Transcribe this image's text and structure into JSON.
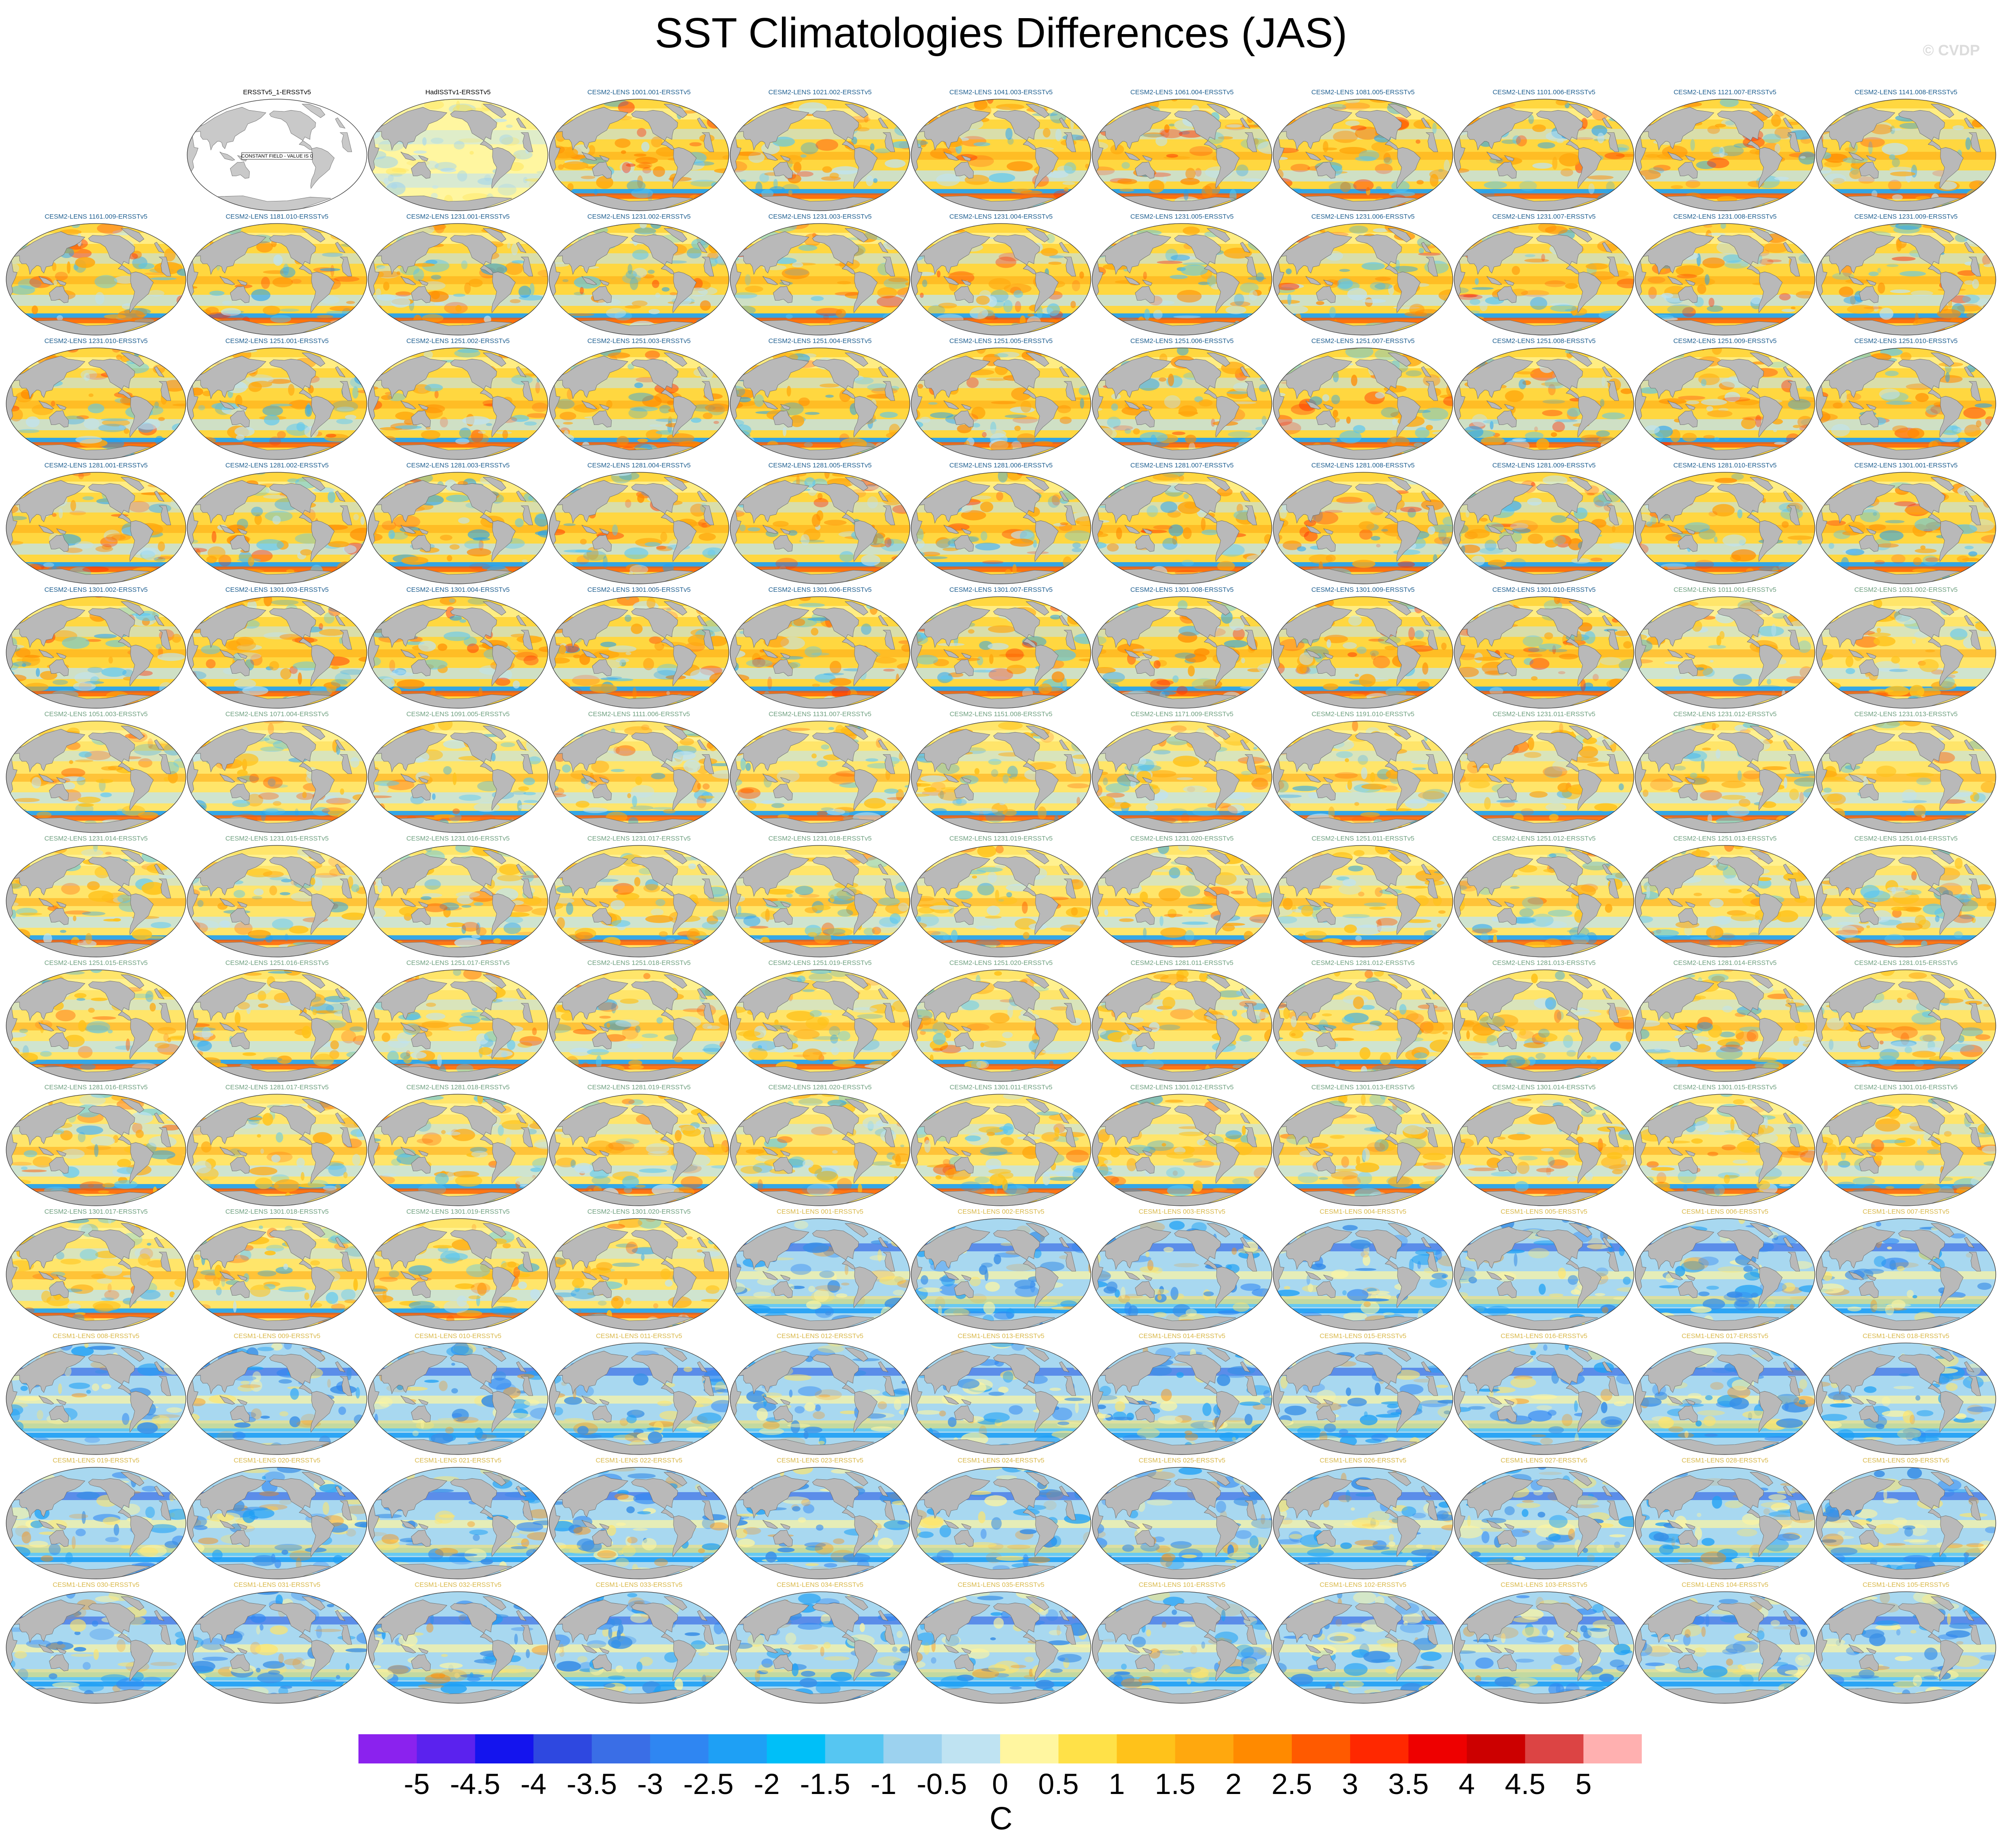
{
  "title": "SST Climatologies Differences (JAS)",
  "credit": "© CVDP",
  "chart_data": {
    "type": "heatmap",
    "title": "SST Climatologies Differences (JAS)",
    "grid": {
      "rows": 13,
      "cols": 11
    },
    "legend_position": "bottom",
    "colorbar": {
      "units": "C",
      "tick_labels": [
        "-5",
        "-4.5",
        "-4",
        "-3.5",
        "-3",
        "-2.5",
        "-2",
        "-1.5",
        "-1",
        "-0.5",
        "0",
        "0.5",
        "1",
        "1.5",
        "2",
        "2.5",
        "3",
        "3.5",
        "4",
        "4.5",
        "5"
      ],
      "colors": [
        "#8b22ee",
        "#5b22ee",
        "#1414ee",
        "#2e48e0",
        "#3a6ee6",
        "#2f86f2",
        "#1ea0f5",
        "#00bff8",
        "#56c6f2",
        "#9cd2ef",
        "#bfe3f2",
        "#fff6a0",
        "#ffe148",
        "#ffc21a",
        "#ffa80e",
        "#ff8a00",
        "#ff5a00",
        "#ff2800",
        "#ee0000",
        "#cc0000",
        "#dc4444",
        "#ffb0b0"
      ]
    },
    "panels": [
      {
        "label": "",
        "group": "blank"
      },
      {
        "label": "ERSSTv5_1-ERSSTv5",
        "group": "obs-constant",
        "note": "CONSTANT FIELD - VALUE IS 0"
      },
      {
        "label": "HadISSTv1-ERSSTv5",
        "group": "obs"
      },
      {
        "label": "CESM2-LENS 1001.001-ERSSTv5",
        "group": "cesm2"
      },
      {
        "label": "CESM2-LENS 1021.002-ERSSTv5",
        "group": "cesm2"
      },
      {
        "label": "CESM2-LENS 1041.003-ERSSTv5",
        "group": "cesm2"
      },
      {
        "label": "CESM2-LENS 1061.004-ERSSTv5",
        "group": "cesm2"
      },
      {
        "label": "CESM2-LENS 1081.005-ERSSTv5",
        "group": "cesm2"
      },
      {
        "label": "CESM2-LENS 1101.006-ERSSTv5",
        "group": "cesm2"
      },
      {
        "label": "CESM2-LENS 1121.007-ERSSTv5",
        "group": "cesm2"
      },
      {
        "label": "CESM2-LENS 1141.008-ERSSTv5",
        "group": "cesm2"
      },
      {
        "label": "CESM2-LENS 1161.009-ERSSTv5",
        "group": "cesm2"
      },
      {
        "label": "CESM2-LENS 1181.010-ERSSTv5",
        "group": "cesm2"
      },
      {
        "label": "CESM2-LENS 1231.001-ERSSTv5",
        "group": "cesm2"
      },
      {
        "label": "CESM2-LENS 1231.002-ERSSTv5",
        "group": "cesm2"
      },
      {
        "label": "CESM2-LENS 1231.003-ERSSTv5",
        "group": "cesm2"
      },
      {
        "label": "CESM2-LENS 1231.004-ERSSTv5",
        "group": "cesm2"
      },
      {
        "label": "CESM2-LENS 1231.005-ERSSTv5",
        "group": "cesm2"
      },
      {
        "label": "CESM2-LENS 1231.006-ERSSTv5",
        "group": "cesm2"
      },
      {
        "label": "CESM2-LENS 1231.007-ERSSTv5",
        "group": "cesm2"
      },
      {
        "label": "CESM2-LENS 1231.008-ERSSTv5",
        "group": "cesm2"
      },
      {
        "label": "CESM2-LENS 1231.009-ERSSTv5",
        "group": "cesm2"
      },
      {
        "label": "CESM2-LENS 1231.010-ERSSTv5",
        "group": "cesm2"
      },
      {
        "label": "CESM2-LENS 1251.001-ERSSTv5",
        "group": "cesm2"
      },
      {
        "label": "CESM2-LENS 1251.002-ERSSTv5",
        "group": "cesm2"
      },
      {
        "label": "CESM2-LENS 1251.003-ERSSTv5",
        "group": "cesm2"
      },
      {
        "label": "CESM2-LENS 1251.004-ERSSTv5",
        "group": "cesm2"
      },
      {
        "label": "CESM2-LENS 1251.005-ERSSTv5",
        "group": "cesm2"
      },
      {
        "label": "CESM2-LENS 1251.006-ERSSTv5",
        "group": "cesm2"
      },
      {
        "label": "CESM2-LENS 1251.007-ERSSTv5",
        "group": "cesm2"
      },
      {
        "label": "CESM2-LENS 1251.008-ERSSTv5",
        "group": "cesm2"
      },
      {
        "label": "CESM2-LENS 1251.009-ERSSTv5",
        "group": "cesm2"
      },
      {
        "label": "CESM2-LENS 1251.010-ERSSTv5",
        "group": "cesm2"
      },
      {
        "label": "CESM2-LENS 1281.001-ERSSTv5",
        "group": "cesm2"
      },
      {
        "label": "CESM2-LENS 1281.002-ERSSTv5",
        "group": "cesm2"
      },
      {
        "label": "CESM2-LENS 1281.003-ERSSTv5",
        "group": "cesm2"
      },
      {
        "label": "CESM2-LENS 1281.004-ERSSTv5",
        "group": "cesm2"
      },
      {
        "label": "CESM2-LENS 1281.005-ERSSTv5",
        "group": "cesm2"
      },
      {
        "label": "CESM2-LENS 1281.006-ERSSTv5",
        "group": "cesm2"
      },
      {
        "label": "CESM2-LENS 1281.007-ERSSTv5",
        "group": "cesm2"
      },
      {
        "label": "CESM2-LENS 1281.008-ERSSTv5",
        "group": "cesm2"
      },
      {
        "label": "CESM2-LENS 1281.009-ERSSTv5",
        "group": "cesm2"
      },
      {
        "label": "CESM2-LENS 1281.010-ERSSTv5",
        "group": "cesm2"
      },
      {
        "label": "CESM2-LENS 1301.001-ERSSTv5",
        "group": "cesm2"
      },
      {
        "label": "CESM2-LENS 1301.002-ERSSTv5",
        "group": "cesm2"
      },
      {
        "label": "CESM2-LENS 1301.003-ERSSTv5",
        "group": "cesm2"
      },
      {
        "label": "CESM2-LENS 1301.004-ERSSTv5",
        "group": "cesm2"
      },
      {
        "label": "CESM2-LENS 1301.005-ERSSTv5",
        "group": "cesm2"
      },
      {
        "label": "CESM2-LENS 1301.006-ERSSTv5",
        "group": "cesm2"
      },
      {
        "label": "CESM2-LENS 1301.007-ERSSTv5",
        "group": "cesm2"
      },
      {
        "label": "CESM2-LENS 1301.008-ERSSTv5",
        "group": "cesm2"
      },
      {
        "label": "CESM2-LENS 1301.009-ERSSTv5",
        "group": "cesm2"
      },
      {
        "label": "CESM2-LENS 1301.010-ERSSTv5",
        "group": "cesm2"
      },
      {
        "label": "CESM2-LENS 1011.001-ERSSTv5",
        "group": "cesm2-smbb"
      },
      {
        "label": "CESM2-LENS 1031.002-ERSSTv5",
        "group": "cesm2-smbb"
      },
      {
        "label": "CESM2-LENS 1051.003-ERSSTv5",
        "group": "cesm2-smbb"
      },
      {
        "label": "CESM2-LENS 1071.004-ERSSTv5",
        "group": "cesm2-smbb"
      },
      {
        "label": "CESM2-LENS 1091.005-ERSSTv5",
        "group": "cesm2-smbb"
      },
      {
        "label": "CESM2-LENS 1111.006-ERSSTv5",
        "group": "cesm2-smbb"
      },
      {
        "label": "CESM2-LENS 1131.007-ERSSTv5",
        "group": "cesm2-smbb"
      },
      {
        "label": "CESM2-LENS 1151.008-ERSSTv5",
        "group": "cesm2-smbb"
      },
      {
        "label": "CESM2-LENS 1171.009-ERSSTv5",
        "group": "cesm2-smbb"
      },
      {
        "label": "CESM2-LENS 1191.010-ERSSTv5",
        "group": "cesm2-smbb"
      },
      {
        "label": "CESM2-LENS 1231.011-ERSSTv5",
        "group": "cesm2-smbb"
      },
      {
        "label": "CESM2-LENS 1231.012-ERSSTv5",
        "group": "cesm2-smbb"
      },
      {
        "label": "CESM2-LENS 1231.013-ERSSTv5",
        "group": "cesm2-smbb"
      },
      {
        "label": "CESM2-LENS 1231.014-ERSSTv5",
        "group": "cesm2-smbb"
      },
      {
        "label": "CESM2-LENS 1231.015-ERSSTv5",
        "group": "cesm2-smbb"
      },
      {
        "label": "CESM2-LENS 1231.016-ERSSTv5",
        "group": "cesm2-smbb"
      },
      {
        "label": "CESM2-LENS 1231.017-ERSSTv5",
        "group": "cesm2-smbb"
      },
      {
        "label": "CESM2-LENS 1231.018-ERSSTv5",
        "group": "cesm2-smbb"
      },
      {
        "label": "CESM2-LENS 1231.019-ERSSTv5",
        "group": "cesm2-smbb"
      },
      {
        "label": "CESM2-LENS 1231.020-ERSSTv5",
        "group": "cesm2-smbb"
      },
      {
        "label": "CESM2-LENS 1251.011-ERSSTv5",
        "group": "cesm2-smbb"
      },
      {
        "label": "CESM2-LENS 1251.012-ERSSTv5",
        "group": "cesm2-smbb"
      },
      {
        "label": "CESM2-LENS 1251.013-ERSSTv5",
        "group": "cesm2-smbb"
      },
      {
        "label": "CESM2-LENS 1251.014-ERSSTv5",
        "group": "cesm2-smbb"
      },
      {
        "label": "CESM2-LENS 1251.015-ERSSTv5",
        "group": "cesm2-smbb"
      },
      {
        "label": "CESM2-LENS 1251.016-ERSSTv5",
        "group": "cesm2-smbb"
      },
      {
        "label": "CESM2-LENS 1251.017-ERSSTv5",
        "group": "cesm2-smbb"
      },
      {
        "label": "CESM2-LENS 1251.018-ERSSTv5",
        "group": "cesm2-smbb"
      },
      {
        "label": "CESM2-LENS 1251.019-ERSSTv5",
        "group": "cesm2-smbb"
      },
      {
        "label": "CESM2-LENS 1251.020-ERSSTv5",
        "group": "cesm2-smbb"
      },
      {
        "label": "CESM2-LENS 1281.011-ERSSTv5",
        "group": "cesm2-smbb"
      },
      {
        "label": "CESM2-LENS 1281.012-ERSSTv5",
        "group": "cesm2-smbb"
      },
      {
        "label": "CESM2-LENS 1281.013-ERSSTv5",
        "group": "cesm2-smbb"
      },
      {
        "label": "CESM2-LENS 1281.014-ERSSTv5",
        "group": "cesm2-smbb"
      },
      {
        "label": "CESM2-LENS 1281.015-ERSSTv5",
        "group": "cesm2-smbb"
      },
      {
        "label": "CESM2-LENS 1281.016-ERSSTv5",
        "group": "cesm2-smbb"
      },
      {
        "label": "CESM2-LENS 1281.017-ERSSTv5",
        "group": "cesm2-smbb"
      },
      {
        "label": "CESM2-LENS 1281.018-ERSSTv5",
        "group": "cesm2-smbb"
      },
      {
        "label": "CESM2-LENS 1281.019-ERSSTv5",
        "group": "cesm2-smbb"
      },
      {
        "label": "CESM2-LENS 1281.020-ERSSTv5",
        "group": "cesm2-smbb"
      },
      {
        "label": "CESM2-LENS 1301.011-ERSSTv5",
        "group": "cesm2-smbb"
      },
      {
        "label": "CESM2-LENS 1301.012-ERSSTv5",
        "group": "cesm2-smbb"
      },
      {
        "label": "CESM2-LENS 1301.013-ERSSTv5",
        "group": "cesm2-smbb"
      },
      {
        "label": "CESM2-LENS 1301.014-ERSSTv5",
        "group": "cesm2-smbb"
      },
      {
        "label": "CESM2-LENS 1301.015-ERSSTv5",
        "group": "cesm2-smbb"
      },
      {
        "label": "CESM2-LENS 1301.016-ERSSTv5",
        "group": "cesm2-smbb"
      },
      {
        "label": "CESM2-LENS 1301.017-ERSSTv5",
        "group": "cesm2-smbb"
      },
      {
        "label": "CESM2-LENS 1301.018-ERSSTv5",
        "group": "cesm2-smbb"
      },
      {
        "label": "CESM2-LENS 1301.019-ERSSTv5",
        "group": "cesm2-smbb"
      },
      {
        "label": "CESM2-LENS 1301.020-ERSSTv5",
        "group": "cesm2-smbb"
      },
      {
        "label": "CESM1-LENS 001-ERSSTv5",
        "group": "cesm1"
      },
      {
        "label": "CESM1-LENS 002-ERSSTv5",
        "group": "cesm1"
      },
      {
        "label": "CESM1-LENS 003-ERSSTv5",
        "group": "cesm1"
      },
      {
        "label": "CESM1-LENS 004-ERSSTv5",
        "group": "cesm1"
      },
      {
        "label": "CESM1-LENS 005-ERSSTv5",
        "group": "cesm1"
      },
      {
        "label": "CESM1-LENS 006-ERSSTv5",
        "group": "cesm1"
      },
      {
        "label": "CESM1-LENS 007-ERSSTv5",
        "group": "cesm1"
      },
      {
        "label": "CESM1-LENS 008-ERSSTv5",
        "group": "cesm1"
      },
      {
        "label": "CESM1-LENS 009-ERSSTv5",
        "group": "cesm1"
      },
      {
        "label": "CESM1-LENS 010-ERSSTv5",
        "group": "cesm1"
      },
      {
        "label": "CESM1-LENS 011-ERSSTv5",
        "group": "cesm1"
      },
      {
        "label": "CESM1-LENS 012-ERSSTv5",
        "group": "cesm1"
      },
      {
        "label": "CESM1-LENS 013-ERSSTv5",
        "group": "cesm1"
      },
      {
        "label": "CESM1-LENS 014-ERSSTv5",
        "group": "cesm1"
      },
      {
        "label": "CESM1-LENS 015-ERSSTv5",
        "group": "cesm1"
      },
      {
        "label": "CESM1-LENS 016-ERSSTv5",
        "group": "cesm1"
      },
      {
        "label": "CESM1-LENS 017-ERSSTv5",
        "group": "cesm1"
      },
      {
        "label": "CESM1-LENS 018-ERSSTv5",
        "group": "cesm1"
      },
      {
        "label": "CESM1-LENS 019-ERSSTv5",
        "group": "cesm1"
      },
      {
        "label": "CESM1-LENS 020-ERSSTv5",
        "group": "cesm1"
      },
      {
        "label": "CESM1-LENS 021-ERSSTv5",
        "group": "cesm1"
      },
      {
        "label": "CESM1-LENS 022-ERSSTv5",
        "group": "cesm1"
      },
      {
        "label": "CESM1-LENS 023-ERSSTv5",
        "group": "cesm1"
      },
      {
        "label": "CESM1-LENS 024-ERSSTv5",
        "group": "cesm1"
      },
      {
        "label": "CESM1-LENS 025-ERSSTv5",
        "group": "cesm1"
      },
      {
        "label": "CESM1-LENS 026-ERSSTv5",
        "group": "cesm1"
      },
      {
        "label": "CESM1-LENS 027-ERSSTv5",
        "group": "cesm1"
      },
      {
        "label": "CESM1-LENS 028-ERSSTv5",
        "group": "cesm1"
      },
      {
        "label": "CESM1-LENS 029-ERSSTv5",
        "group": "cesm1"
      },
      {
        "label": "CESM1-LENS 030-ERSSTv5",
        "group": "cesm1"
      },
      {
        "label": "CESM1-LENS 031-ERSSTv5",
        "group": "cesm1"
      },
      {
        "label": "CESM1-LENS 032-ERSSTv5",
        "group": "cesm1"
      },
      {
        "label": "CESM1-LENS 033-ERSSTv5",
        "group": "cesm1"
      },
      {
        "label": "CESM1-LENS 034-ERSSTv5",
        "group": "cesm1"
      },
      {
        "label": "CESM1-LENS 035-ERSSTv5",
        "group": "cesm1"
      },
      {
        "label": "CESM1-LENS 101-ERSSTv5",
        "group": "cesm1"
      },
      {
        "label": "CESM1-LENS 102-ERSSTv5",
        "group": "cesm1"
      },
      {
        "label": "CESM1-LENS 103-ERSSTv5",
        "group": "cesm1"
      },
      {
        "label": "CESM1-LENS 104-ERSSTv5",
        "group": "cesm1"
      },
      {
        "label": "CESM1-LENS 105-ERSSTv5",
        "group": "cesm1"
      }
    ]
  }
}
